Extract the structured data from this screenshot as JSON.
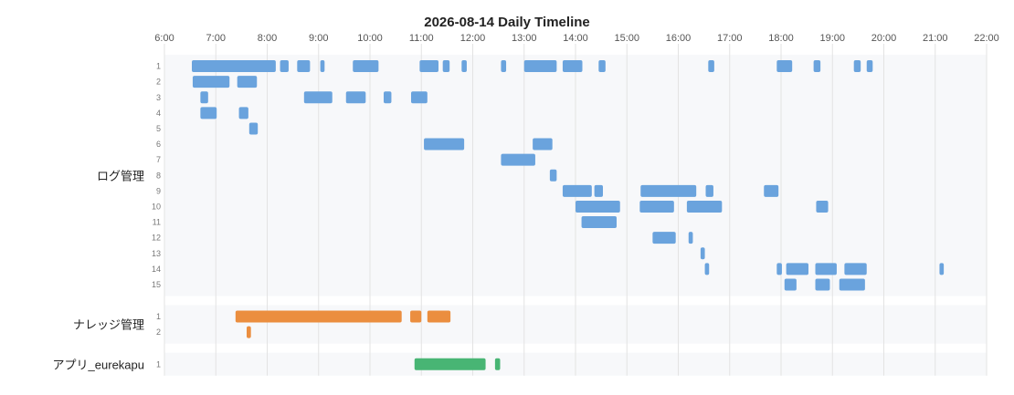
{
  "chart_data": {
    "type": "timeline",
    "title": "2026-08-14 Daily Timeline",
    "x_ticks": [
      "6:00",
      "7:00",
      "8:00",
      "9:00",
      "10:00",
      "11:00",
      "12:00",
      "13:00",
      "14:00",
      "15:00",
      "16:00",
      "17:00",
      "18:00",
      "19:00",
      "20:00",
      "21:00",
      "22:00"
    ],
    "xlim": [
      "6:00",
      "22:00"
    ],
    "grid": true,
    "groups": [
      {
        "name": "ログ管理",
        "color": "#6aa3dd",
        "rows": [
          {
            "label": "1",
            "segments": [
              [
                "6:32",
                "8:10"
              ],
              [
                "8:15",
                "8:25"
              ],
              [
                "8:35",
                "8:50"
              ],
              [
                "9:02",
                "9:07"
              ],
              [
                "9:40",
                "10:10"
              ],
              [
                "10:58",
                "11:20"
              ],
              [
                "11:25",
                "11:33"
              ],
              [
                "11:47",
                "11:53"
              ],
              [
                "12:33",
                "12:39"
              ],
              [
                "13:00",
                "13:38"
              ],
              [
                "13:45",
                "14:08"
              ],
              [
                "14:27",
                "14:35"
              ],
              [
                "16:35",
                "16:42"
              ],
              [
                "17:55",
                "18:13"
              ],
              [
                "18:38",
                "18:46"
              ],
              [
                "19:25",
                "19:33"
              ],
              [
                "19:40",
                "19:47"
              ]
            ]
          },
          {
            "label": "2",
            "segments": [
              [
                "6:33",
                "7:16"
              ],
              [
                "7:25",
                "7:48"
              ]
            ]
          },
          {
            "label": "3",
            "segments": [
              [
                "6:42",
                "6:51"
              ],
              [
                "8:43",
                "9:16"
              ],
              [
                "9:32",
                "9:55"
              ],
              [
                "10:16",
                "10:25"
              ],
              [
                "10:48",
                "11:07"
              ]
            ]
          },
          {
            "label": "4",
            "segments": [
              [
                "6:42",
                "7:01"
              ],
              [
                "7:27",
                "7:38"
              ]
            ]
          },
          {
            "label": "5",
            "segments": [
              [
                "7:39",
                "7:49"
              ]
            ]
          },
          {
            "label": "6",
            "segments": [
              [
                "11:03",
                "11:50"
              ],
              [
                "13:10",
                "13:33"
              ]
            ]
          },
          {
            "label": "7",
            "segments": [
              [
                "12:33",
                "13:13"
              ]
            ]
          },
          {
            "label": "8",
            "segments": [
              [
                "13:30",
                "13:38"
              ]
            ]
          },
          {
            "label": "9",
            "segments": [
              [
                "13:45",
                "14:19"
              ],
              [
                "14:22",
                "14:32"
              ],
              [
                "15:16",
                "16:21"
              ],
              [
                "16:32",
                "16:41"
              ],
              [
                "17:40",
                "17:57"
              ]
            ]
          },
          {
            "label": "10",
            "segments": [
              [
                "14:00",
                "14:52"
              ],
              [
                "15:15",
                "15:55"
              ],
              [
                "16:10",
                "16:51"
              ],
              [
                "18:41",
                "18:55"
              ]
            ]
          },
          {
            "label": "11",
            "segments": [
              [
                "14:07",
                "14:48"
              ]
            ]
          },
          {
            "label": "12",
            "segments": [
              [
                "15:30",
                "15:57"
              ],
              [
                "16:12",
                "16:17"
              ]
            ]
          },
          {
            "label": "13",
            "segments": [
              [
                "16:26",
                "16:31"
              ]
            ]
          },
          {
            "label": "14",
            "segments": [
              [
                "16:31",
                "16:36"
              ],
              [
                "17:55",
                "18:01"
              ],
              [
                "18:06",
                "18:32"
              ],
              [
                "18:40",
                "19:05"
              ],
              [
                "19:14",
                "19:40"
              ],
              [
                "21:05",
                "21:10"
              ]
            ]
          },
          {
            "label": "15",
            "segments": [
              [
                "18:04",
                "18:18"
              ],
              [
                "18:40",
                "18:57"
              ],
              [
                "19:08",
                "19:38"
              ]
            ]
          }
        ]
      },
      {
        "name": "ナレッジ管理",
        "color": "#eb8e3f",
        "rows": [
          {
            "label": "1",
            "segments": [
              [
                "7:23",
                "10:37"
              ],
              [
                "10:47",
                "11:00"
              ],
              [
                "11:07",
                "11:34"
              ]
            ]
          },
          {
            "label": "2",
            "segments": [
              [
                "7:36",
                "7:41"
              ]
            ]
          }
        ]
      },
      {
        "name": "アプリ_eurekapu",
        "color": "#48b574",
        "rows": [
          {
            "label": "1",
            "segments": [
              [
                "10:52",
                "12:15"
              ],
              [
                "12:26",
                "12:32"
              ]
            ]
          }
        ]
      }
    ]
  }
}
